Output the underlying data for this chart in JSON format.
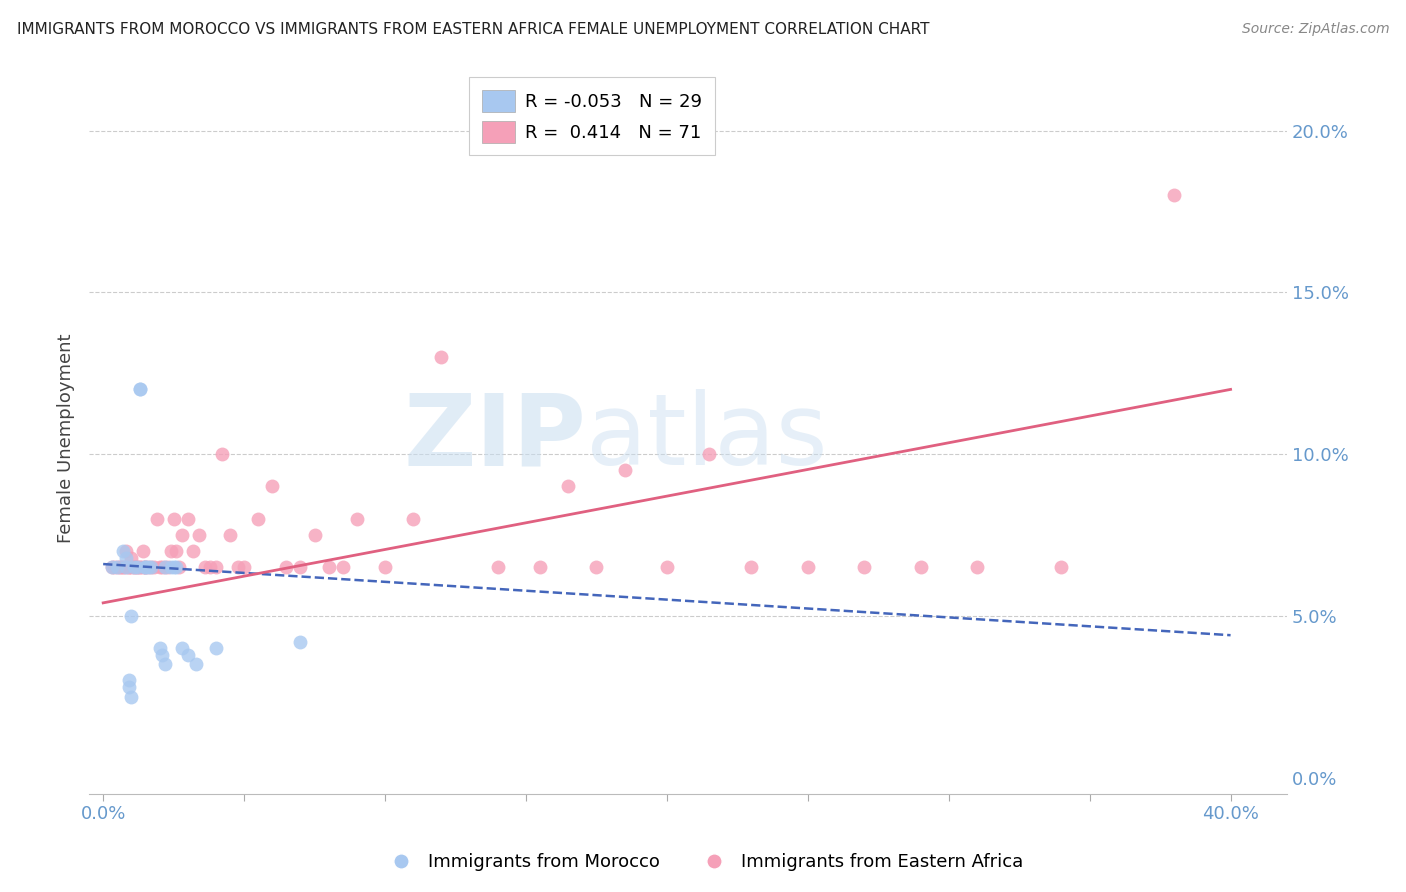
{
  "title": "IMMIGRANTS FROM MOROCCO VS IMMIGRANTS FROM EASTERN AFRICA FEMALE UNEMPLOYMENT CORRELATION CHART",
  "source": "Source: ZipAtlas.com",
  "ylabel": "Female Unemployment",
  "watermark_part1": "ZIP",
  "watermark_part2": "atlas",
  "right_yticks": [
    0.0,
    0.05,
    0.1,
    0.15,
    0.2
  ],
  "right_yticklabels": [
    "0.0%",
    "5.0%",
    "10.0%",
    "15.0%",
    "20.0%"
  ],
  "xticks": [
    0.0,
    0.05,
    0.1,
    0.15,
    0.2,
    0.25,
    0.3,
    0.35,
    0.4
  ],
  "xticklabels": [
    "0.0%",
    "",
    "",
    "",
    "",
    "",
    "",
    "",
    "40.0%"
  ],
  "xlim": [
    -0.005,
    0.42
  ],
  "ylim": [
    -0.005,
    0.215
  ],
  "morocco_R": "-0.053",
  "morocco_N": "29",
  "eastafrica_R": "0.414",
  "eastafrica_N": "71",
  "morocco_color": "#a8c8f0",
  "eastafrica_color": "#f5a0b8",
  "trendline_morocco_color": "#4466bb",
  "trendline_eastafrica_color": "#e06080",
  "legend_label_morocco": "Immigrants from Morocco",
  "legend_label_eastafrica": "Immigrants from Eastern Africa",
  "background_color": "#ffffff",
  "grid_color": "#cccccc",
  "axis_label_color": "#6699cc",
  "title_color": "#222222",
  "morocco_x": [
    0.003,
    0.005,
    0.007,
    0.008,
    0.008,
    0.009,
    0.009,
    0.01,
    0.01,
    0.011,
    0.012,
    0.013,
    0.013,
    0.015,
    0.015,
    0.016,
    0.017,
    0.02,
    0.021,
    0.022,
    0.022,
    0.024,
    0.025,
    0.026,
    0.028,
    0.03,
    0.033,
    0.04,
    0.07
  ],
  "morocco_y": [
    0.065,
    0.065,
    0.07,
    0.065,
    0.068,
    0.03,
    0.028,
    0.05,
    0.025,
    0.065,
    0.065,
    0.12,
    0.12,
    0.065,
    0.065,
    0.065,
    0.065,
    0.04,
    0.038,
    0.035,
    0.065,
    0.065,
    0.065,
    0.065,
    0.04,
    0.038,
    0.035,
    0.04,
    0.042
  ],
  "eastafrica_x": [
    0.003,
    0.004,
    0.005,
    0.006,
    0.006,
    0.007,
    0.007,
    0.008,
    0.008,
    0.009,
    0.009,
    0.01,
    0.01,
    0.011,
    0.011,
    0.012,
    0.012,
    0.013,
    0.013,
    0.014,
    0.014,
    0.015,
    0.015,
    0.016,
    0.017,
    0.018,
    0.019,
    0.02,
    0.021,
    0.022,
    0.023,
    0.024,
    0.025,
    0.026,
    0.027,
    0.028,
    0.03,
    0.032,
    0.034,
    0.036,
    0.038,
    0.04,
    0.042,
    0.045,
    0.048,
    0.05,
    0.055,
    0.06,
    0.065,
    0.07,
    0.075,
    0.08,
    0.085,
    0.09,
    0.1,
    0.11,
    0.12,
    0.14,
    0.155,
    0.165,
    0.175,
    0.185,
    0.2,
    0.215,
    0.23,
    0.25,
    0.27,
    0.29,
    0.31,
    0.34,
    0.38
  ],
  "eastafrica_y": [
    0.065,
    0.065,
    0.065,
    0.065,
    0.065,
    0.065,
    0.065,
    0.065,
    0.07,
    0.065,
    0.065,
    0.065,
    0.068,
    0.065,
    0.065,
    0.065,
    0.065,
    0.065,
    0.065,
    0.065,
    0.07,
    0.065,
    0.065,
    0.065,
    0.065,
    0.065,
    0.08,
    0.065,
    0.065,
    0.065,
    0.065,
    0.07,
    0.08,
    0.07,
    0.065,
    0.075,
    0.08,
    0.07,
    0.075,
    0.065,
    0.065,
    0.065,
    0.1,
    0.075,
    0.065,
    0.065,
    0.08,
    0.09,
    0.065,
    0.065,
    0.075,
    0.065,
    0.065,
    0.08,
    0.065,
    0.08,
    0.13,
    0.065,
    0.065,
    0.09,
    0.065,
    0.095,
    0.065,
    0.1,
    0.065,
    0.065,
    0.065,
    0.065,
    0.065,
    0.065,
    0.18
  ],
  "trendline_x_start": 0.0,
  "trendline_x_end": 0.4,
  "morocco_trend_y_start": 0.066,
  "morocco_trend_y_end": 0.044,
  "eastafrica_trend_y_start": 0.054,
  "eastafrica_trend_y_end": 0.12
}
